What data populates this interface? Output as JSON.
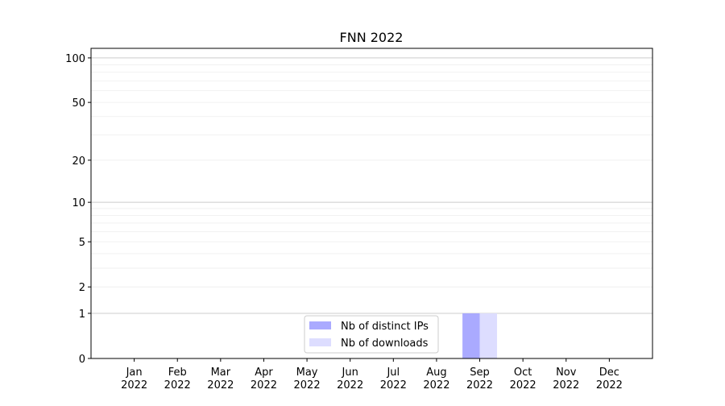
{
  "chart_data": {
    "type": "bar",
    "title": "FNN 2022",
    "xlabel": "",
    "ylabel": "",
    "categories": [
      "Jan\n2022",
      "Feb\n2022",
      "Mar\n2022",
      "Apr\n2022",
      "May\n2022",
      "Jun\n2022",
      "Jul\n2022",
      "Aug\n2022",
      "Sep\n2022",
      "Oct\n2022",
      "Nov\n2022",
      "Dec\n2022"
    ],
    "series": [
      {
        "name": "Nb of distinct IPs",
        "color": "#aaaaff",
        "values": [
          0,
          0,
          0,
          0,
          0,
          0,
          0,
          0,
          1,
          0,
          0,
          0
        ]
      },
      {
        "name": "Nb of downloads",
        "color": "#ddddff",
        "values": [
          0,
          0,
          0,
          0,
          0,
          0,
          0,
          0,
          1,
          0,
          0,
          0
        ]
      }
    ],
    "yscale": "log10(1+y)",
    "yticks": [
      0,
      1,
      2,
      5,
      10,
      20,
      50,
      100
    ],
    "ylim": [
      0,
      116
    ],
    "grid": true,
    "legend": "lower-center"
  }
}
